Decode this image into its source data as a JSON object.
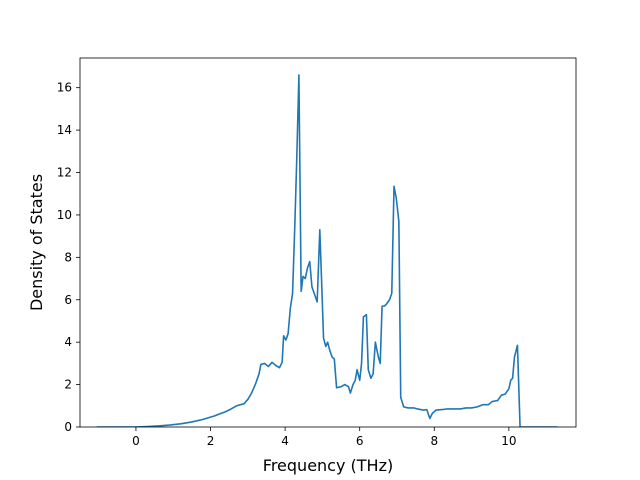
{
  "chart_data": {
    "type": "line",
    "title": "",
    "xlabel": "Frequency (THz)",
    "ylabel": "Density of States",
    "xlim": [
      -1.5,
      11.8
    ],
    "ylim": [
      0,
      17.4
    ],
    "xticks": [
      0,
      2,
      4,
      6,
      8,
      10
    ],
    "yticks": [
      0,
      2,
      4,
      6,
      8,
      10,
      12,
      14,
      16
    ],
    "grid": false,
    "legend": "none",
    "series": [
      {
        "color": "#1f77b4",
        "points": [
          [
            -1.05,
            0
          ],
          [
            -0.5,
            0
          ],
          [
            0,
            0
          ],
          [
            0.3,
            0.02
          ],
          [
            0.6,
            0.05
          ],
          [
            0.9,
            0.09
          ],
          [
            1.2,
            0.15
          ],
          [
            1.5,
            0.24
          ],
          [
            1.8,
            0.36
          ],
          [
            2.1,
            0.52
          ],
          [
            2.4,
            0.72
          ],
          [
            2.55,
            0.85
          ],
          [
            2.7,
            1.0
          ],
          [
            2.9,
            1.1
          ],
          [
            3.0,
            1.3
          ],
          [
            3.1,
            1.6
          ],
          [
            3.2,
            2.0
          ],
          [
            3.3,
            2.5
          ],
          [
            3.35,
            2.95
          ],
          [
            3.45,
            3.0
          ],
          [
            3.55,
            2.85
          ],
          [
            3.65,
            3.05
          ],
          [
            3.75,
            2.9
          ],
          [
            3.85,
            2.8
          ],
          [
            3.92,
            3.05
          ],
          [
            3.96,
            4.3
          ],
          [
            4.02,
            4.1
          ],
          [
            4.08,
            4.4
          ],
          [
            4.14,
            5.6
          ],
          [
            4.2,
            6.3
          ],
          [
            4.26,
            9.5
          ],
          [
            4.31,
            12.5
          ],
          [
            4.37,
            16.6
          ],
          [
            4.43,
            6.4
          ],
          [
            4.48,
            7.1
          ],
          [
            4.54,
            7.0
          ],
          [
            4.6,
            7.5
          ],
          [
            4.66,
            7.8
          ],
          [
            4.72,
            6.6
          ],
          [
            4.8,
            6.2
          ],
          [
            4.86,
            5.9
          ],
          [
            4.93,
            9.3
          ],
          [
            4.98,
            6.8
          ],
          [
            5.03,
            4.2
          ],
          [
            5.09,
            3.8
          ],
          [
            5.14,
            4.0
          ],
          [
            5.2,
            3.6
          ],
          [
            5.26,
            3.3
          ],
          [
            5.32,
            3.2
          ],
          [
            5.38,
            1.85
          ],
          [
            5.5,
            1.9
          ],
          [
            5.6,
            2.0
          ],
          [
            5.7,
            1.9
          ],
          [
            5.75,
            1.6
          ],
          [
            5.82,
            2.0
          ],
          [
            5.88,
            2.2
          ],
          [
            5.93,
            2.7
          ],
          [
            6.0,
            2.2
          ],
          [
            6.05,
            3.0
          ],
          [
            6.1,
            5.2
          ],
          [
            6.18,
            5.3
          ],
          [
            6.23,
            2.7
          ],
          [
            6.3,
            2.3
          ],
          [
            6.36,
            2.5
          ],
          [
            6.42,
            4.0
          ],
          [
            6.5,
            3.3
          ],
          [
            6.55,
            3.0
          ],
          [
            6.6,
            5.7
          ],
          [
            6.66,
            5.7
          ],
          [
            6.72,
            5.8
          ],
          [
            6.8,
            6.0
          ],
          [
            6.86,
            6.3
          ],
          [
            6.92,
            11.35
          ],
          [
            6.98,
            10.8
          ],
          [
            7.05,
            9.7
          ],
          [
            7.1,
            1.4
          ],
          [
            7.18,
            0.95
          ],
          [
            7.3,
            0.9
          ],
          [
            7.45,
            0.9
          ],
          [
            7.55,
            0.85
          ],
          [
            7.7,
            0.8
          ],
          [
            7.8,
            0.82
          ],
          [
            7.88,
            0.4
          ],
          [
            7.95,
            0.65
          ],
          [
            8.05,
            0.8
          ],
          [
            8.2,
            0.82
          ],
          [
            8.35,
            0.85
          ],
          [
            8.5,
            0.85
          ],
          [
            8.7,
            0.85
          ],
          [
            8.85,
            0.9
          ],
          [
            9.0,
            0.9
          ],
          [
            9.15,
            0.95
          ],
          [
            9.3,
            1.05
          ],
          [
            9.45,
            1.05
          ],
          [
            9.55,
            1.2
          ],
          [
            9.7,
            1.25
          ],
          [
            9.8,
            1.5
          ],
          [
            9.9,
            1.55
          ],
          [
            10.0,
            1.8
          ],
          [
            10.05,
            2.2
          ],
          [
            10.1,
            2.3
          ],
          [
            10.15,
            3.3
          ],
          [
            10.23,
            3.85
          ],
          [
            10.3,
            0.0
          ],
          [
            10.5,
            0
          ],
          [
            11.3,
            0
          ]
        ]
      }
    ]
  }
}
